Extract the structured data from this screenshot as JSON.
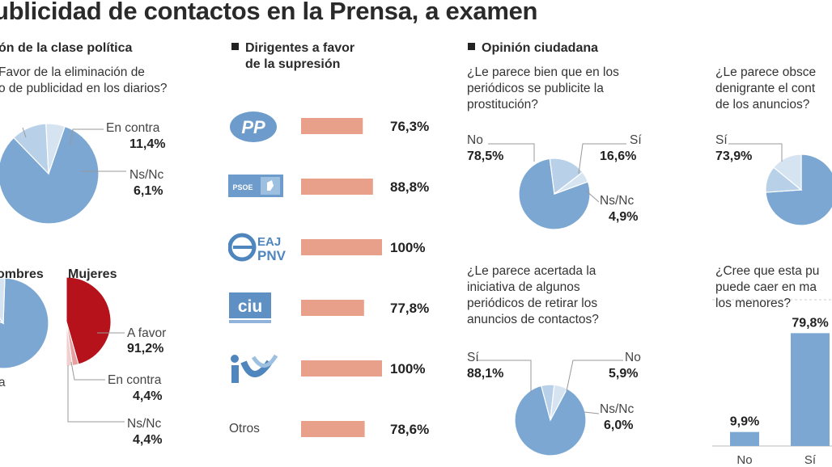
{
  "title": "ublicidad de contactos en la Prensa, a examen",
  "colors": {
    "blue": "#7ba7d2",
    "light_blue": "#b9d1e8",
    "red": "#b5121b",
    "light_red": "#e6a0a0",
    "bar": "#e8a08a",
    "line": "#999999"
  },
  "left": {
    "heading": "ón de la clase política",
    "question_lines": [
      "Favor de la eliminación de",
      "o de publicidad en los diarios?"
    ],
    "labels": {
      "contra": "En contra",
      "nsnc": "Ns/Nc"
    },
    "values": {
      "contra": "11,4%",
      "nsnc": "6,1%"
    },
    "hombres_label": "ombres",
    "mujeres_label": "Mujeres",
    "hombres_partial_label": "a",
    "mujeres_labels": {
      "favor": "A favor",
      "contra": "En contra",
      "nsnc": "Ns/Nc"
    },
    "mujeres_values": {
      "favor": "91,2%",
      "contra": "4,4%",
      "nsnc": "4,4%"
    }
  },
  "middle": {
    "heading_lines": [
      "Dirigentes a favor",
      "de la supresión"
    ],
    "logos": [
      "pp-logo",
      "psoe-logo",
      "eaj-pnv-logo",
      "ciu-logo",
      "iu-logo"
    ],
    "other_label": "Otros",
    "logo_texts": {
      "pp": "PP",
      "psoe": "PSOE",
      "eaj": "EAJ",
      "pnv": "PNV",
      "ciu": "ciu"
    }
  },
  "right": {
    "heading": "Opinión ciudadana",
    "q1_lines": [
      "¿Le parece bien que en los",
      "periódicos se publicite la",
      "prostitución?"
    ],
    "q1_labels": {
      "no": "No",
      "si": "Sí",
      "nsnc": "Ns/Nc"
    },
    "q1_values": {
      "no": "78,5%",
      "si": "16,6%",
      "nsnc": "4,9%"
    },
    "q2_lines": [
      "¿Le parece acertada la",
      "iniciativa de algunos",
      "periódicos de retirar los",
      "anuncios de contactos?"
    ],
    "q2_labels": {
      "si": "Sí",
      "no": "No",
      "nsnc": "Ns/Nc"
    },
    "q2_values": {
      "si": "88,1%",
      "no": "5,9%",
      "nsnc": "6,0%"
    }
  },
  "far_right": {
    "q3_lines": [
      "¿Le parece obsce",
      "denigrante el cont",
      "de los anuncios?"
    ],
    "q3_label": "Sí",
    "q3_value": "73,9%",
    "q4_lines": [
      "¿Cree que esta pu",
      "puede caer en ma",
      "los menores?"
    ]
  },
  "chart_data": [
    {
      "type": "pie",
      "title": "",
      "series": [
        {
          "name": "",
          "values": [
            82.5,
            11.4,
            6.1
          ]
        }
      ],
      "categories": [
        "A favor",
        "En contra",
        "Ns/Nc"
      ]
    },
    {
      "type": "pie",
      "title": "Hombres",
      "values": [
        80,
        10,
        10
      ]
    },
    {
      "type": "pie",
      "title": "Mujeres",
      "categories": [
        "A favor",
        "En contra",
        "Ns/Nc"
      ],
      "values": [
        91.2,
        4.4,
        4.4
      ]
    },
    {
      "type": "bar",
      "title": "Dirigentes a favor de la supresión",
      "categories": [
        "PP",
        "PSOE",
        "EAJ-PNV",
        "CiU",
        "IU",
        "Otros"
      ],
      "values": [
        76.3,
        88.8,
        100,
        77.8,
        100,
        78.6
      ],
      "labels": [
        "76,3%",
        "88,8%",
        "100%",
        "77,8%",
        "100%",
        "78,6%"
      ],
      "ylim": [
        0,
        100
      ]
    },
    {
      "type": "pie",
      "title": "¿Le parece bien que en los periódicos se publicite la prostitución?",
      "categories": [
        "No",
        "Sí",
        "Ns/Nc"
      ],
      "values": [
        78.5,
        16.6,
        4.9
      ]
    },
    {
      "type": "pie",
      "title": "¿Le parece acertada la iniciativa de algunos periódicos de retirar los anuncios de contactos?",
      "categories": [
        "Sí",
        "No",
        "Ns/Nc"
      ],
      "values": [
        88.1,
        5.9,
        6.0
      ]
    },
    {
      "type": "pie",
      "categories": [
        "Sí"
      ],
      "values": [
        73.9
      ]
    },
    {
      "type": "bar",
      "categories": [
        "No",
        "Sí"
      ],
      "values": [
        9.9,
        79.8
      ],
      "labels": [
        "9,9%",
        "79,8%"
      ],
      "ylim": [
        0,
        100
      ]
    }
  ]
}
